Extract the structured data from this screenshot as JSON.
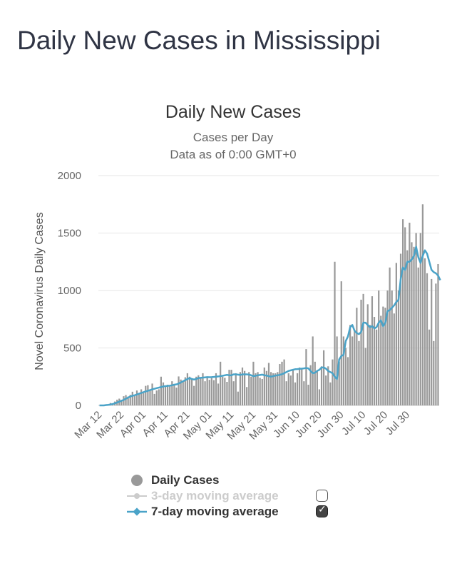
{
  "page": {
    "title": "Daily New Cases in Mississippi"
  },
  "chart_data": {
    "type": "bar",
    "title": "Daily New Cases",
    "subtitle": "Cases per Day",
    "subtitle2": "Data as of 0:00 GMT+0",
    "ylabel": "Novel Coronavirus Daily Cases",
    "xlabel": "",
    "ylim": [
      0,
      2000
    ],
    "yticks": [
      0,
      500,
      1000,
      1500,
      2000
    ],
    "x_tick_labels": [
      "Mar 12",
      "Mar 22",
      "Apr 01",
      "Apr 11",
      "Apr 21",
      "May 01",
      "May 11",
      "May 21",
      "May 31",
      "Jun 10",
      "Jun 20",
      "Jun 30",
      "Jul 10",
      "Jul 20",
      "Jul 30"
    ],
    "x_start": "Mar 12",
    "colors": {
      "bars": "#999999",
      "ma7": "#4aa3c8",
      "ma3": "#cccccc",
      "grid": "#e6e6e6"
    },
    "series": [
      {
        "name": "Daily Cases",
        "values": [
          1,
          0,
          4,
          6,
          10,
          21,
          13,
          34,
          50,
          59,
          49,
          80,
          90,
          77,
          92,
          119,
          91,
          130,
          100,
          140,
          108,
          170,
          176,
          137,
          190,
          100,
          130,
          140,
          250,
          200,
          168,
          180,
          170,
          210,
          180,
          155,
          252,
          225,
          207,
          245,
          280,
          250,
          230,
          170,
          250,
          262,
          238,
          280,
          210,
          250,
          223,
          238,
          220,
          280,
          190,
          380,
          250,
          240,
          205,
          310,
          310,
          210,
          280,
          120,
          290,
          330,
          300,
          160,
          290,
          250,
          380,
          280,
          290,
          240,
          230,
          330,
          300,
          370,
          290,
          280,
          280,
          290,
          360,
          380,
          400,
          210,
          280,
          260,
          310,
          200,
          280,
          330,
          320,
          210,
          490,
          180,
          350,
          600,
          380,
          300,
          140,
          340,
          480,
          260,
          340,
          200,
          400,
          1250,
          600,
          380,
          1080,
          600,
          500,
          420,
          700,
          600,
          650,
          850,
          560,
          920,
          970,
          500,
          880,
          700,
          950,
          770,
          660,
          1000,
          780,
          860,
          850,
          1000,
          1200,
          1000,
          800,
          1240,
          1000,
          1320,
          1620,
          1550,
          1350,
          1590,
          1420,
          1380,
          1500,
          1200,
          1500,
          1750,
          1280,
          1150,
          660,
          1100,
          560,
          1060,
          1230
        ]
      },
      {
        "name": "3-day moving average",
        "values": []
      },
      {
        "name": "7-day moving average",
        "values": [
          0,
          0,
          0,
          3,
          5,
          8,
          12,
          18,
          25,
          33,
          40,
          48,
          58,
          68,
          77,
          84,
          88,
          95,
          102,
          108,
          115,
          122,
          127,
          133,
          140,
          145,
          150,
          155,
          160,
          165,
          168,
          170,
          172,
          175,
          180,
          183,
          190,
          200,
          210,
          220,
          230,
          238,
          230,
          225,
          230,
          238,
          240,
          242,
          244,
          246,
          245,
          246,
          248,
          250,
          252,
          255,
          258,
          262,
          266,
          262,
          262,
          270,
          270,
          268,
          265,
          270,
          270,
          270,
          268,
          262,
          255,
          258,
          262,
          265,
          268,
          262,
          260,
          255,
          250,
          255,
          260,
          262,
          266,
          272,
          280,
          290,
          300,
          305,
          310,
          315,
          316,
          318,
          320,
          322,
          325,
          322,
          300,
          280,
          285,
          300,
          310,
          330,
          330,
          320,
          300,
          290,
          280,
          250,
          230,
          400,
          430,
          440,
          560,
          600,
          680,
          700,
          650,
          630,
          620,
          640,
          720,
          720,
          700,
          680,
          690,
          670,
          680,
          720,
          740,
          690,
          720,
          820,
          830,
          850,
          870,
          900,
          920,
          1100,
          1200,
          1180,
          1250,
          1250,
          1270,
          1300,
          1380,
          1290,
          1240,
          1300,
          1350,
          1320,
          1250,
          1180,
          1160,
          1150,
          1130,
          1090
        ]
      }
    ]
  },
  "legend": {
    "items": [
      {
        "label": "Daily Cases",
        "color": "#333333"
      },
      {
        "label": "3-day moving average",
        "color": "#cccccc"
      },
      {
        "label": "7-day moving average",
        "color": "#333333"
      }
    ]
  }
}
